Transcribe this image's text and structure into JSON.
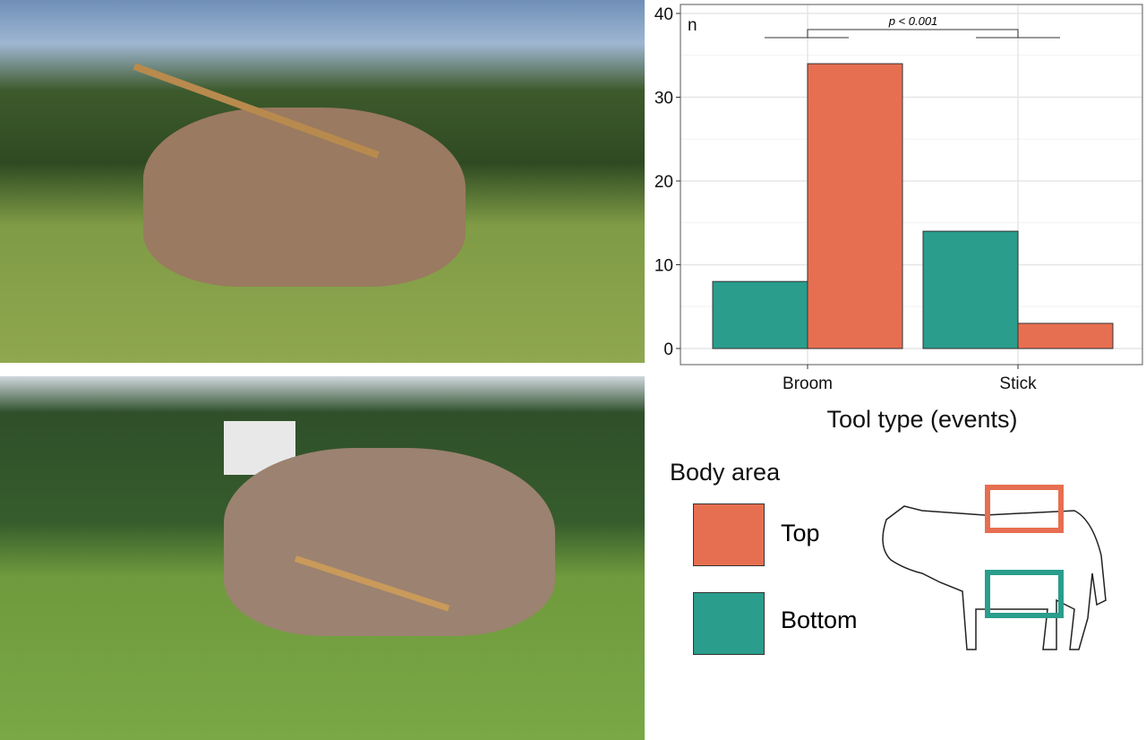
{
  "photos": [
    {
      "description_icon": "cow-with-broom-photo"
    },
    {
      "description_icon": "cow-with-brush-photo"
    }
  ],
  "chart_data": {
    "type": "bar",
    "categories": [
      "Broom",
      "Stick"
    ],
    "series": [
      {
        "name": "Bottom",
        "values": [
          8,
          14
        ],
        "color": "#2a9d8c"
      },
      {
        "name": "Top",
        "values": [
          34,
          3
        ],
        "color": "#e76f51"
      }
    ],
    "ylabel": "n",
    "xlabel": "Tool type (events)",
    "ylim": [
      0,
      40
    ],
    "yticks": [
      "0",
      "10",
      "20",
      "30",
      "40"
    ],
    "grid": true,
    "annotation": "p < 0.001"
  },
  "legend": {
    "title": "Body area",
    "items": [
      {
        "label": "Top",
        "color": "#e76f51"
      },
      {
        "label": "Bottom",
        "color": "#2a9d8c"
      }
    ]
  }
}
